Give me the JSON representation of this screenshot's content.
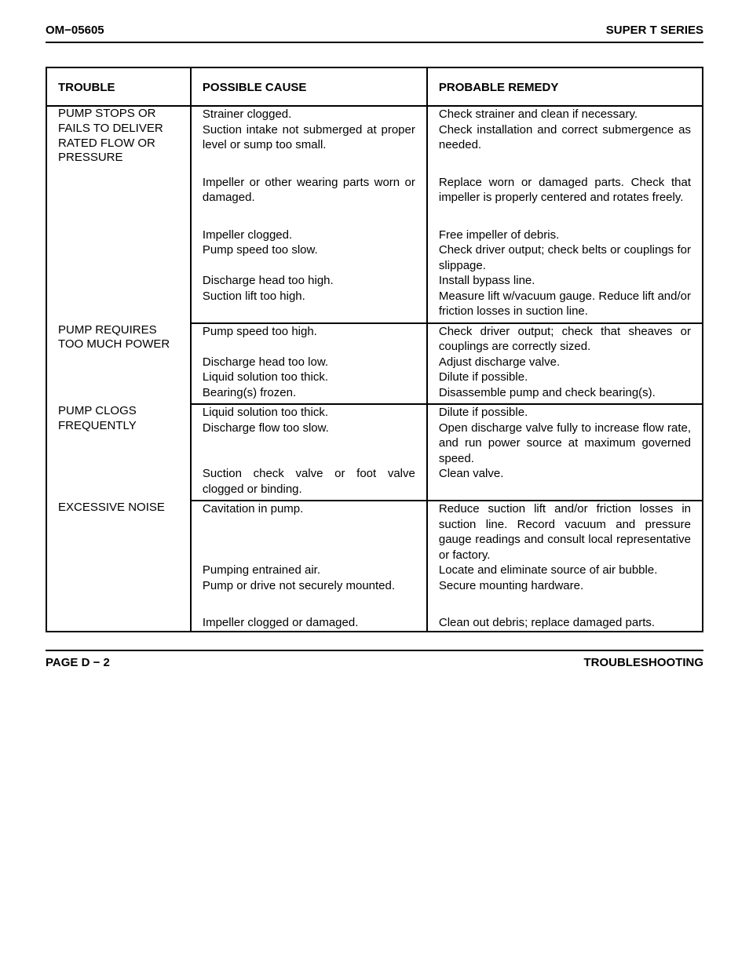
{
  "header": {
    "left": "OM−05605",
    "right": "SUPER T SERIES"
  },
  "footer": {
    "left": "PAGE D − 2",
    "right": "TROUBLESHOOTING"
  },
  "table": {
    "columns": [
      "TROUBLE",
      "POSSIBLE CAUSE",
      "PROBABLE REMEDY"
    ],
    "sections": [
      {
        "trouble": "PUMP STOPS OR FAILS TO DELIVER RATED FLOW OR PRESSURE",
        "rows": [
          {
            "cause": "Strainer clogged.",
            "remedy": "Check strainer and clean if necessary."
          },
          {
            "cause": "Suction intake not submerged at proper level or sump too small.",
            "remedy": "Check installation and correct submergence as needed."
          },
          {
            "cause": "Impeller or other wearing parts worn or damaged.",
            "remedy": "Replace worn or damaged parts. Check that impeller is properly centered and rotates freely.",
            "extraTop": true
          },
          {
            "cause": "Impeller clogged.",
            "remedy": "Free impeller of debris.",
            "extraTop": true
          },
          {
            "cause": "Pump speed too slow.",
            "remedy": "Check driver output; check belts or couplings for slippage."
          },
          {
            "cause": "Discharge head too high.",
            "remedy": "Install bypass line."
          },
          {
            "cause": "Suction lift too high.",
            "remedy": "Measure lift w/vacuum gauge. Reduce lift and/or friction losses in suction line.",
            "tightBottom": true
          }
        ]
      },
      {
        "trouble": "PUMP REQUIRES TOO MUCH POWER",
        "rows": [
          {
            "cause": "Pump speed too high.",
            "remedy": "Check driver output; check that sheaves or couplings are correctly sized."
          },
          {
            "cause": "Discharge head too low.",
            "remedy": "Adjust discharge valve."
          },
          {
            "cause": "Liquid solution too thick.",
            "remedy": "Dilute if possible."
          },
          {
            "cause": "Bearing(s) frozen.",
            "remedy": "Disassemble pump and check bearing(s).",
            "tightBottom": true
          }
        ]
      },
      {
        "trouble": "PUMP CLOGS FREQUENTLY",
        "rows": [
          {
            "cause": "Liquid solution too thick.",
            "remedy": "Dilute if possible."
          },
          {
            "cause": "Discharge flow too slow.",
            "remedy": "Open discharge valve fully to increase flow rate, and run power source at maximum governed speed."
          },
          {
            "cause": "Suction check valve or foot valve clogged or binding.",
            "remedy": "Clean valve.",
            "tightBottom": true
          }
        ]
      },
      {
        "trouble": "EXCESSIVE NOISE",
        "rows": [
          {
            "cause": "Cavitation in pump.",
            "remedy": "Reduce suction lift and/or friction losses in suction line. Record vacuum and pressure gauge readings and consult local representative or factory."
          },
          {
            "cause": "Pumping entrained air.",
            "remedy": "Locate and eliminate source of air bubble."
          },
          {
            "cause": "Pump or drive not securely mounted.",
            "remedy": "Secure mounting hardware.",
            "extraTop": false
          },
          {
            "cause": "Impeller clogged or damaged.",
            "remedy": "Clean out debris; replace damaged parts.",
            "extraTop": true
          }
        ]
      }
    ]
  }
}
